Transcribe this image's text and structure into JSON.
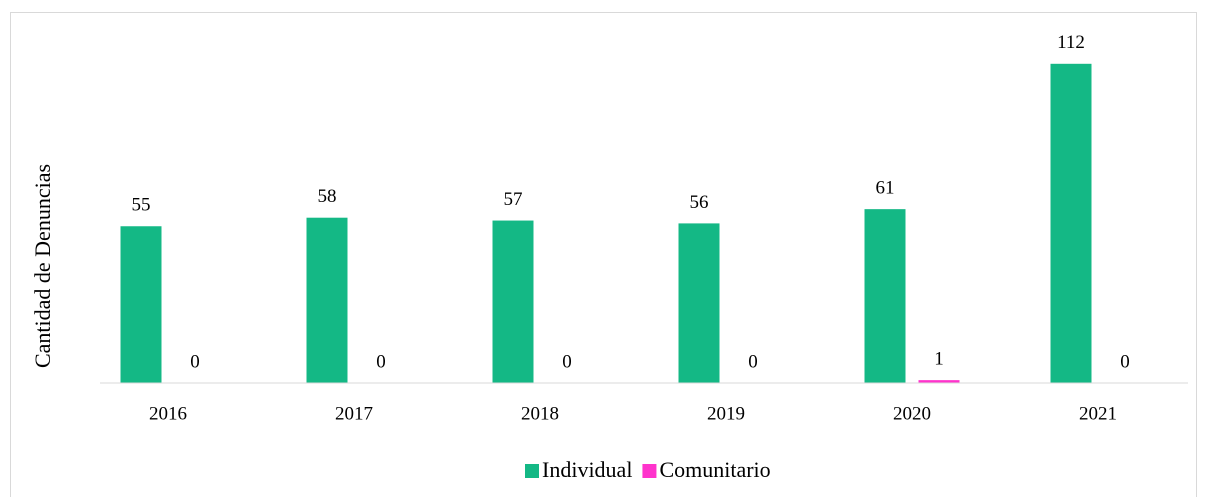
{
  "chart_data": {
    "type": "bar",
    "y_label": "Cantidad de Denuncias",
    "categories": [
      "2016",
      "2017",
      "2018",
      "2019",
      "2020",
      "2021"
    ],
    "series": [
      {
        "name": "Individual",
        "color": "#14b885",
        "values": [
          55,
          58,
          57,
          56,
          61,
          112
        ]
      },
      {
        "name": "Comunitario",
        "color": "#ff33cc",
        "values": [
          0,
          0,
          0,
          0,
          1,
          0
        ]
      }
    ],
    "ylim": [
      0,
      120
    ],
    "legend": "bottom"
  }
}
